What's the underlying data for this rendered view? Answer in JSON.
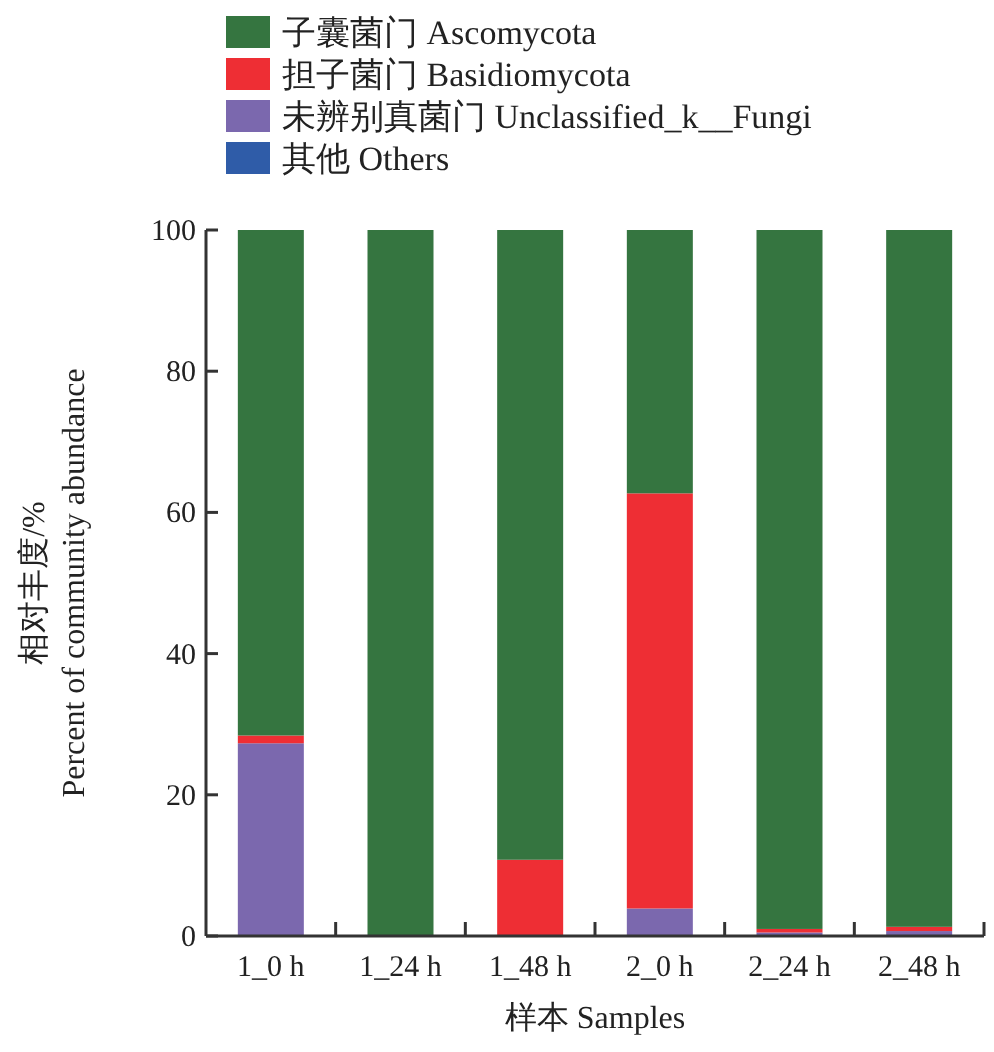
{
  "chart_data": {
    "type": "bar",
    "stacked": true,
    "xlabel": "样本 Samples",
    "ylabel": "相对丰度/%\nPercent of community abundance",
    "categories": [
      "1_0 h",
      "1_24 h",
      "1_48 h",
      "2_0 h",
      "2_24 h",
      "2_48 h"
    ],
    "series": [
      {
        "name": "其他 Others",
        "color": "#2f5ca8",
        "values": [
          0,
          0,
          0,
          0,
          0,
          0
        ]
      },
      {
        "name": "未辨别真菌门 Unclassified_k__Fungi",
        "color": "#7b68ae",
        "values": [
          27.3,
          0,
          0,
          3.9,
          0.5,
          0.7
        ]
      },
      {
        "name": "担子菌门 Basidiomycota",
        "color": "#ee2e34",
        "values": [
          1.1,
          0,
          10.8,
          58.8,
          0.5,
          0.6
        ]
      },
      {
        "name": "子囊菌门 Ascomycota",
        "color": "#357540",
        "values": [
          71.6,
          100,
          89.2,
          37.3,
          99,
          98.7
        ]
      }
    ],
    "ylim": [
      0,
      100
    ],
    "yticks": [
      0,
      20,
      40,
      60,
      80,
      100
    ],
    "legend": "top",
    "grid": false
  }
}
